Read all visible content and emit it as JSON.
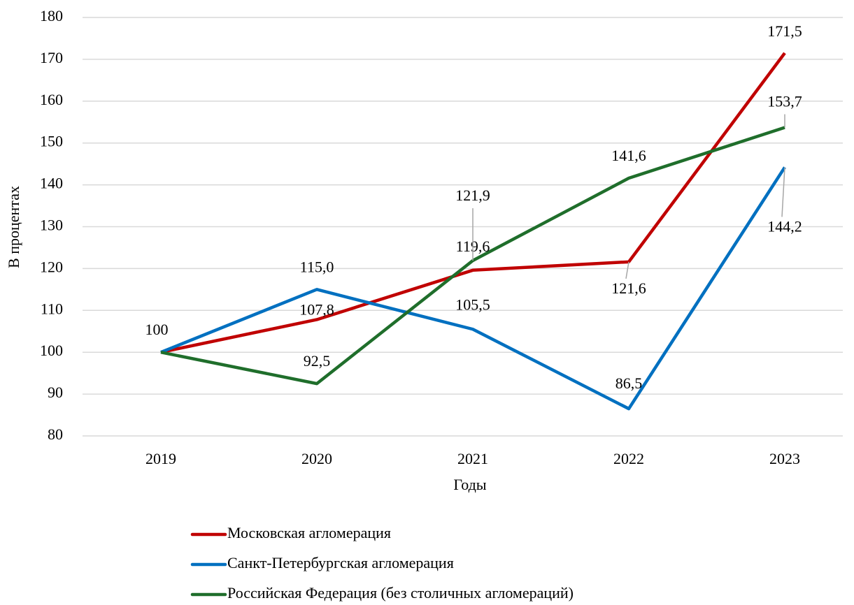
{
  "chart_data": {
    "type": "line",
    "x_label": "Годы",
    "y_label": "В процентах",
    "categories": [
      "2019",
      "2020",
      "2021",
      "2022",
      "2023"
    ],
    "series": [
      {
        "name": "Московская агломерация",
        "color": "#c00000",
        "values": [
          100,
          107.8,
          119.6,
          121.6,
          171.5
        ],
        "value_labels": [
          "100",
          "107,8",
          "119,6",
          "121,6",
          "171,5"
        ]
      },
      {
        "name": "Санкт-Петербургская агломерация",
        "color": "#0070c0",
        "values": [
          100,
          115.0,
          105.5,
          86.5,
          144.2
        ],
        "value_labels": [
          null,
          "115,0",
          "105,5",
          "86,5",
          "144,2"
        ]
      },
      {
        "name": "Российская Федерация (без столичных агломераций)",
        "color": "#1f6e2b",
        "values": [
          100,
          92.5,
          121.9,
          141.6,
          153.7
        ],
        "value_labels": [
          null,
          "92,5",
          "121,9",
          "141,6",
          "153,7"
        ]
      }
    ],
    "ylim": [
      80,
      180
    ],
    "yticks": [
      80,
      90,
      100,
      110,
      120,
      130,
      140,
      150,
      160,
      170,
      180
    ],
    "grid": true,
    "legend": "bottom"
  }
}
